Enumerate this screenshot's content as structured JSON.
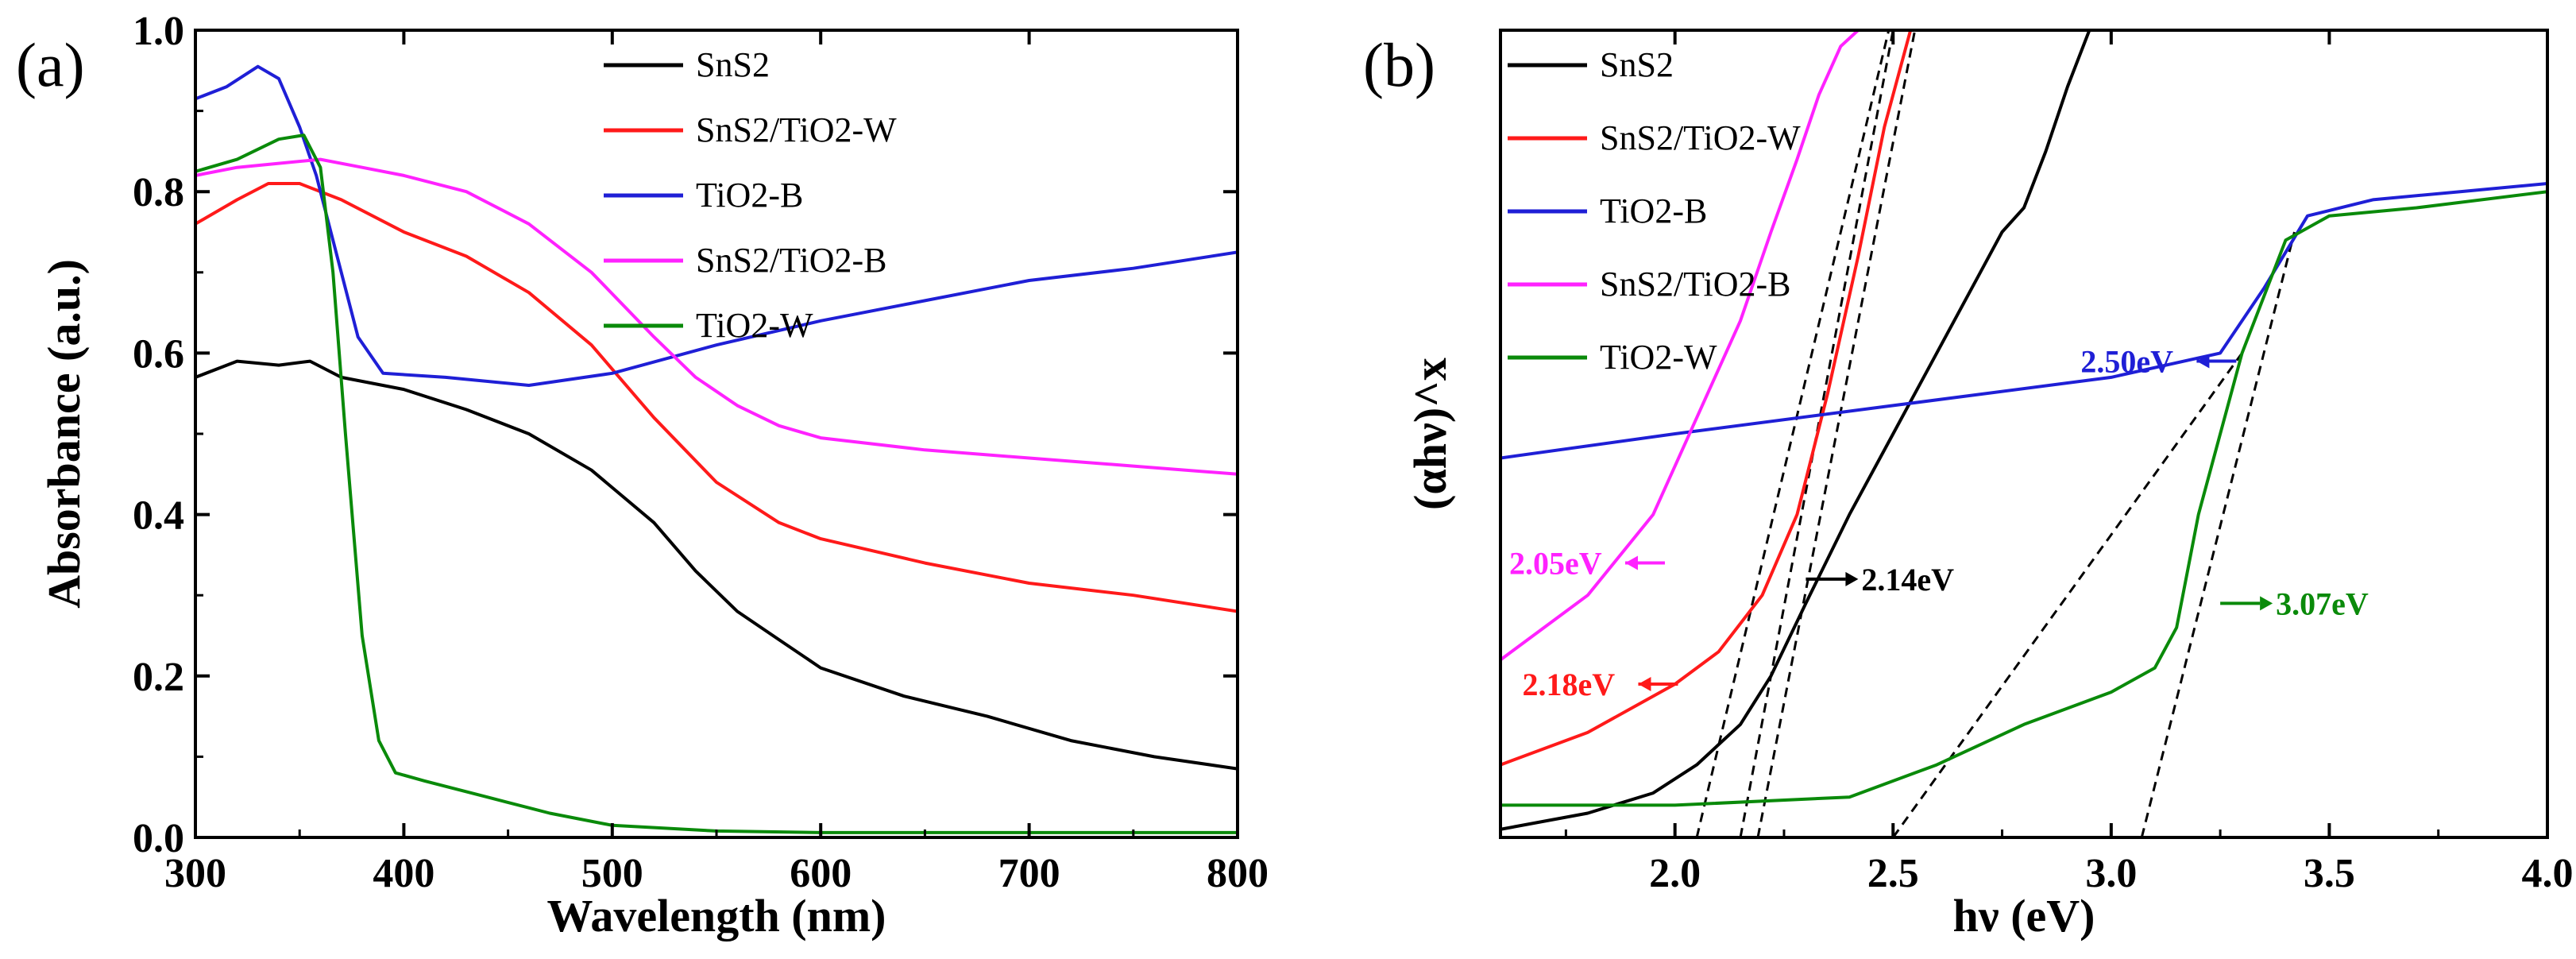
{
  "colors": {
    "SnS2": "#000000",
    "SnS2_TiO2_W": "#ff1a1a",
    "TiO2_B": "#1f1fd6",
    "SnS2_TiO2_B": "#ff22ff",
    "TiO2_W": "#0a8a0a"
  },
  "chart_data": [
    {
      "type": "line",
      "panel_label": "(a)",
      "title": "",
      "xlabel": "Wavelength (nm)",
      "ylabel": "Absorbance (a.u.)",
      "xlim": [
        300,
        800
      ],
      "ylim": [
        0.0,
        1.0
      ],
      "xticks": [
        "300",
        "400",
        "500",
        "600",
        "700",
        "800"
      ],
      "yticks": [
        "0.0",
        "0.2",
        "0.4",
        "0.6",
        "0.8",
        "1.0"
      ],
      "legend": [
        "SnS2",
        "SnS2/TiO2-W",
        "TiO2-B",
        "SnS2/TiO2-B",
        "TiO2-W"
      ],
      "legend_position": "top-center",
      "series": [
        {
          "name": "SnS2",
          "color_key": "SnS2",
          "x": [
            300,
            320,
            340,
            355,
            370,
            400,
            430,
            460,
            490,
            520,
            540,
            560,
            580,
            600,
            640,
            680,
            720,
            760,
            800
          ],
          "y": [
            0.57,
            0.59,
            0.585,
            0.59,
            0.57,
            0.555,
            0.53,
            0.5,
            0.455,
            0.39,
            0.33,
            0.28,
            0.245,
            0.21,
            0.175,
            0.15,
            0.12,
            0.1,
            0.085
          ]
        },
        {
          "name": "SnS2/TiO2-W",
          "color_key": "SnS2_TiO2_W",
          "x": [
            300,
            320,
            335,
            350,
            370,
            400,
            430,
            460,
            490,
            520,
            550,
            580,
            600,
            650,
            700,
            750,
            800
          ],
          "y": [
            0.76,
            0.79,
            0.81,
            0.81,
            0.79,
            0.75,
            0.72,
            0.675,
            0.61,
            0.52,
            0.44,
            0.39,
            0.37,
            0.34,
            0.315,
            0.3,
            0.28
          ]
        },
        {
          "name": "TiO2-B",
          "color_key": "TiO2_B",
          "x": [
            300,
            315,
            330,
            340,
            350,
            358,
            368,
            378,
            390,
            420,
            460,
            500,
            550,
            600,
            650,
            700,
            750,
            800
          ],
          "y": [
            0.915,
            0.93,
            0.955,
            0.94,
            0.88,
            0.82,
            0.72,
            0.62,
            0.575,
            0.57,
            0.56,
            0.575,
            0.61,
            0.64,
            0.665,
            0.69,
            0.705,
            0.725
          ]
        },
        {
          "name": "SnS2/TiO2-B",
          "color_key": "SnS2_TiO2_B",
          "x": [
            300,
            320,
            340,
            360,
            380,
            400,
            430,
            460,
            490,
            520,
            540,
            560,
            580,
            600,
            650,
            700,
            750,
            800
          ],
          "y": [
            0.82,
            0.83,
            0.835,
            0.84,
            0.83,
            0.82,
            0.8,
            0.76,
            0.7,
            0.62,
            0.57,
            0.535,
            0.51,
            0.495,
            0.48,
            0.47,
            0.46,
            0.45
          ]
        },
        {
          "name": "TiO2-W",
          "color_key": "TiO2_W",
          "x": [
            300,
            320,
            340,
            352,
            360,
            366,
            372,
            380,
            388,
            396,
            410,
            440,
            470,
            500,
            550,
            600,
            700,
            800
          ],
          "y": [
            0.825,
            0.84,
            0.865,
            0.87,
            0.83,
            0.7,
            0.5,
            0.25,
            0.12,
            0.08,
            0.07,
            0.05,
            0.03,
            0.015,
            0.008,
            0.006,
            0.006,
            0.006
          ]
        }
      ]
    },
    {
      "type": "line",
      "panel_label": "(b)",
      "title": "",
      "xlabel": "hν (eV)",
      "ylabel": "(αhν)^x",
      "xlim": [
        1.6,
        4.0
      ],
      "ylim": [
        0,
        1
      ],
      "xticks": [
        "2.0",
        "2.5",
        "3.0",
        "3.5",
        "4.0"
      ],
      "legend": [
        "SnS2",
        "SnS2/TiO2-W",
        "TiO2-B",
        "SnS2/TiO2-B",
        "TiO2-W"
      ],
      "legend_position": "top-left",
      "series": [
        {
          "name": "SnS2",
          "color_key": "SnS2",
          "x": [
            1.6,
            1.8,
            1.95,
            2.05,
            2.15,
            2.22,
            2.3,
            2.4,
            2.5,
            2.6,
            2.7,
            2.75,
            2.8,
            2.85,
            2.9,
            2.95
          ],
          "y": [
            0.01,
            0.03,
            0.055,
            0.09,
            0.14,
            0.2,
            0.29,
            0.4,
            0.5,
            0.6,
            0.7,
            0.75,
            0.78,
            0.85,
            0.93,
            1.0
          ]
        },
        {
          "name": "SnS2/TiO2-W",
          "color_key": "SnS2_TiO2_W",
          "x": [
            1.6,
            1.8,
            2.0,
            2.1,
            2.2,
            2.28,
            2.35,
            2.42,
            2.48,
            2.54
          ],
          "y": [
            0.09,
            0.13,
            0.19,
            0.23,
            0.3,
            0.4,
            0.55,
            0.72,
            0.88,
            1.0
          ]
        },
        {
          "name": "TiO2-B",
          "color_key": "TiO2_B",
          "x": [
            1.6,
            2.0,
            2.5,
            3.0,
            3.25,
            3.35,
            3.45,
            3.6,
            3.8,
            4.0
          ],
          "y": [
            0.47,
            0.5,
            0.535,
            0.57,
            0.6,
            0.68,
            0.77,
            0.79,
            0.8,
            0.81
          ]
        },
        {
          "name": "SnS2/TiO2-B",
          "color_key": "SnS2_TiO2_B",
          "x": [
            1.6,
            1.8,
            1.95,
            2.05,
            2.15,
            2.22,
            2.28,
            2.33,
            2.38,
            2.42
          ],
          "y": [
            0.22,
            0.3,
            0.4,
            0.52,
            0.64,
            0.75,
            0.84,
            0.92,
            0.98,
            1.0
          ]
        },
        {
          "name": "TiO2-W",
          "color_key": "TiO2_W",
          "x": [
            1.6,
            2.0,
            2.4,
            2.6,
            2.8,
            3.0,
            3.1,
            3.15,
            3.2,
            3.3,
            3.4,
            3.5,
            3.7,
            4.0
          ],
          "y": [
            0.04,
            0.04,
            0.05,
            0.09,
            0.14,
            0.18,
            0.21,
            0.26,
            0.4,
            0.6,
            0.74,
            0.77,
            0.78,
            0.8
          ]
        }
      ],
      "tangent_lines": [
        {
          "x": [
            2.05,
            2.49
          ],
          "y": [
            0.0,
            1.0
          ]
        },
        {
          "x": [
            2.15,
            2.5
          ],
          "y": [
            0.0,
            1.0
          ]
        },
        {
          "x": [
            2.19,
            2.55
          ],
          "y": [
            0.0,
            1.0
          ]
        },
        {
          "x": [
            2.5,
            3.3
          ],
          "y": [
            0.0,
            0.6
          ]
        },
        {
          "x": [
            3.07,
            3.42
          ],
          "y": [
            0.0,
            0.75
          ]
        }
      ],
      "annotations": [
        {
          "text": "2.05eV",
          "color_key": "SnS2_TiO2_B",
          "x": 1.62,
          "y": 0.34,
          "arrow": "left"
        },
        {
          "text": "2.18eV",
          "color_key": "SnS2_TiO2_W",
          "x": 1.65,
          "y": 0.19,
          "arrow": "left"
        },
        {
          "text": "2.14eV",
          "color_key": "SnS2",
          "x": 2.3,
          "y": 0.32,
          "arrow": "right"
        },
        {
          "text": "2.50eV",
          "color_key": "TiO2_B",
          "x": 2.93,
          "y": 0.59,
          "arrow": "left"
        },
        {
          "text": "3.07eV",
          "color_key": "TiO2_W",
          "x": 3.25,
          "y": 0.29,
          "arrow": "right"
        }
      ]
    }
  ]
}
